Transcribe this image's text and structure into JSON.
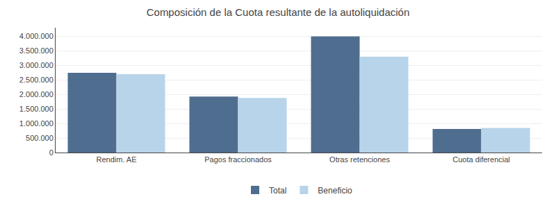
{
  "chart_data": {
    "type": "bar",
    "title": "Composición de la Cuota resultante de la autoliquidación",
    "categories": [
      "Rendim. AE",
      "Pagos fraccionados",
      "Otras retenciones",
      "Cuota diferencial"
    ],
    "series": [
      {
        "name": "Total",
        "color": "#4f6d8f",
        "values": [
          2750000,
          1930000,
          4000000,
          810000
        ]
      },
      {
        "name": "Beneficio",
        "color": "#b8d4ea",
        "values": [
          2700000,
          1880000,
          3300000,
          850000
        ]
      }
    ],
    "ylim": [
      0,
      4300000
    ],
    "yticks": [
      0,
      {
        "value": 500000,
        "label": "500.000"
      },
      {
        "value": 1000000,
        "label": "1.000.000"
      },
      {
        "value": 1500000,
        "label": "1.500.000"
      },
      {
        "value": 2000000,
        "label": "2.000.000"
      },
      {
        "value": 2500000,
        "label": "2.500.000"
      },
      {
        "value": 3000000,
        "label": "3.000.000"
      },
      {
        "value": 3500000,
        "label": "3.500.000"
      },
      {
        "value": 4000000,
        "label": "4.000.000"
      }
    ],
    "grid": true,
    "legend": "bottom"
  }
}
